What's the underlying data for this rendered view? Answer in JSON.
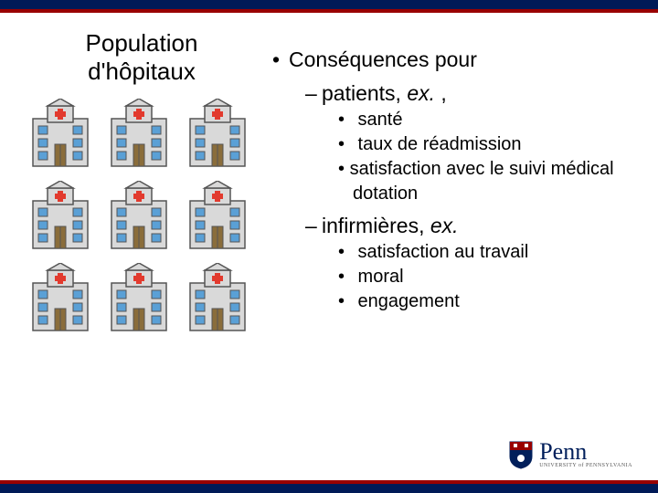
{
  "colors": {
    "navy": "#001a57",
    "red_bar": "#990000",
    "text": "#000000",
    "hospital_body": "#d9d9d9",
    "hospital_outline": "#555555",
    "hospital_cross": "#e23a2e",
    "hospital_window": "#5aa0d6",
    "hospital_door": "#8a6d3b",
    "penn_blue": "#011f5b",
    "penn_red": "#990000"
  },
  "left": {
    "title_line1": "Population",
    "title_line2": "d'hôpitaux",
    "grid": {
      "rows": 3,
      "cols": 3
    }
  },
  "right": {
    "h1": "Conséquences pour",
    "groups": [
      {
        "heading_plain": "patients, ",
        "heading_em": "ex.",
        "heading_tail": " ,",
        "items": [
          "santé",
          "taux de réadmission",
          "satisfaction avec le suivi médical dotation"
        ]
      },
      {
        "heading_plain": "infirmières, ",
        "heading_em": "ex.",
        "heading_tail": "",
        "items": [
          "satisfaction au travail",
          "moral",
          "engagement"
        ]
      }
    ]
  },
  "logo": {
    "text": "Penn",
    "subtitle": "UNIVERSITY of PENNSYLVANIA"
  }
}
